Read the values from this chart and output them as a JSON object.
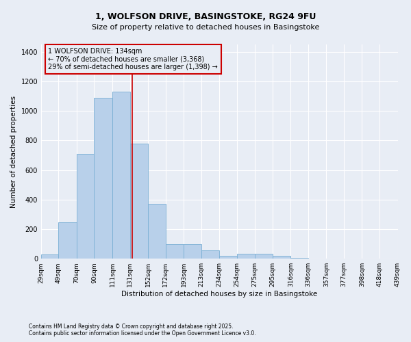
{
  "title_line1": "1, WOLFSON DRIVE, BASINGSTOKE, RG24 9FU",
  "title_line2": "Size of property relative to detached houses in Basingstoke",
  "xlabel": "Distribution of detached houses by size in Basingstoke",
  "ylabel": "Number of detached properties",
  "footer_line1": "Contains HM Land Registry data © Crown copyright and database right 2025.",
  "footer_line2": "Contains public sector information licensed under the Open Government Licence v3.0.",
  "annotation_line1": "1 WOLFSON DRIVE: 134sqm",
  "annotation_line2": "← 70% of detached houses are smaller (3,368)",
  "annotation_line3": "29% of semi-detached houses are larger (1,398) →",
  "bar_edges": [
    29,
    49,
    70,
    90,
    111,
    131,
    152,
    172,
    193,
    213,
    234,
    254,
    275,
    295,
    316,
    336,
    357,
    377,
    398,
    418,
    439
  ],
  "bar_heights": [
    30,
    245,
    710,
    1090,
    1130,
    780,
    370,
    100,
    100,
    55,
    20,
    35,
    35,
    20,
    5,
    0,
    0,
    0,
    0,
    0
  ],
  "property_size": 134,
  "bar_color": "#b8d0ea",
  "bar_edge_color": "#7aafd4",
  "line_color": "#cc0000",
  "annotation_box_edge_color": "#cc0000",
  "background_color": "#e8edf5",
  "ylim": [
    0,
    1450
  ],
  "yticks": [
    0,
    200,
    400,
    600,
    800,
    1000,
    1200,
    1400
  ],
  "grid_color": "#ffffff",
  "title_fontsize": 9,
  "subtitle_fontsize": 8,
  "axis_label_fontsize": 7.5,
  "tick_fontsize": 6.5,
  "footer_fontsize": 5.5,
  "annotation_fontsize": 7
}
